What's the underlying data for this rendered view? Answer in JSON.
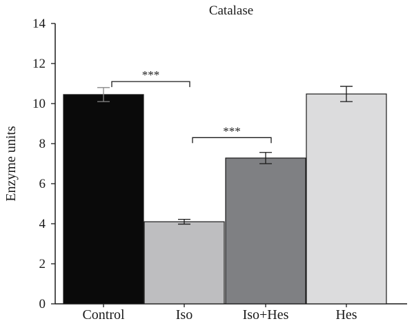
{
  "chart_data": {
    "type": "bar",
    "title": "Catalase",
    "xlabel": "",
    "ylabel": "Enzyme units",
    "ylim": [
      0,
      14
    ],
    "yticks": [
      0,
      2,
      4,
      6,
      8,
      10,
      12,
      14
    ],
    "grid": false,
    "categories": [
      "Control",
      "Iso",
      "Iso+Hes",
      "Hes"
    ],
    "values": [
      10.45,
      4.1,
      7.28,
      10.48
    ],
    "errors": [
      0.35,
      0.12,
      0.28,
      0.38
    ],
    "colors": [
      "#0a0a0a",
      "#bebec0",
      "#7f8083",
      "#dcdcdd"
    ],
    "annotations": [
      {
        "from": "Control",
        "to": "Iso",
        "label": "***",
        "y": 11.1
      },
      {
        "from": "Iso",
        "to": "Iso+Hes",
        "label": "***",
        "y": 8.3
      }
    ]
  }
}
